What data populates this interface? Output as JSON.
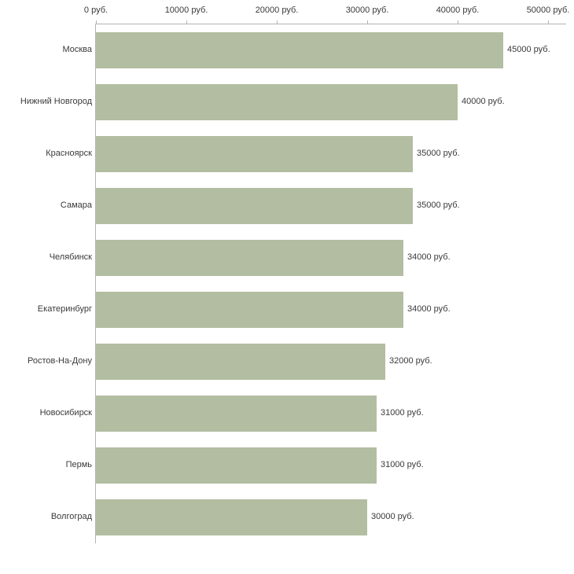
{
  "chart_data": {
    "type": "bar",
    "orientation": "horizontal",
    "title": "",
    "xlabel": "",
    "ylabel": "",
    "unit": "руб.",
    "categories": [
      "Москва",
      "Нижний Новгород",
      "Красноярск",
      "Самара",
      "Челябинск",
      "Екатеринбург",
      "Ростов-На-Дону",
      "Новосибирск",
      "Пермь",
      "Волгоград"
    ],
    "values": [
      45000,
      40000,
      35000,
      35000,
      34000,
      34000,
      32000,
      31000,
      31000,
      30000
    ],
    "value_labels": [
      "45000 руб.",
      "40000 руб.",
      "35000 руб.",
      "35000 руб.",
      "34000 руб.",
      "34000 руб.",
      "32000 руб.",
      "31000 руб.",
      "31000 руб.",
      "30000 руб."
    ],
    "x_ticks": [
      0,
      10000,
      20000,
      30000,
      40000,
      50000
    ],
    "x_tick_labels": [
      "0 руб.",
      "10000 руб.",
      "20000 руб.",
      "30000 руб.",
      "40000 руб.",
      "50000 руб."
    ],
    "xlim": [
      0,
      50000
    ],
    "grid": false,
    "legend": false,
    "bar_color": "#b3bda1",
    "axis_color": "#b4b4b4",
    "text_color": "#3a3a3a"
  }
}
